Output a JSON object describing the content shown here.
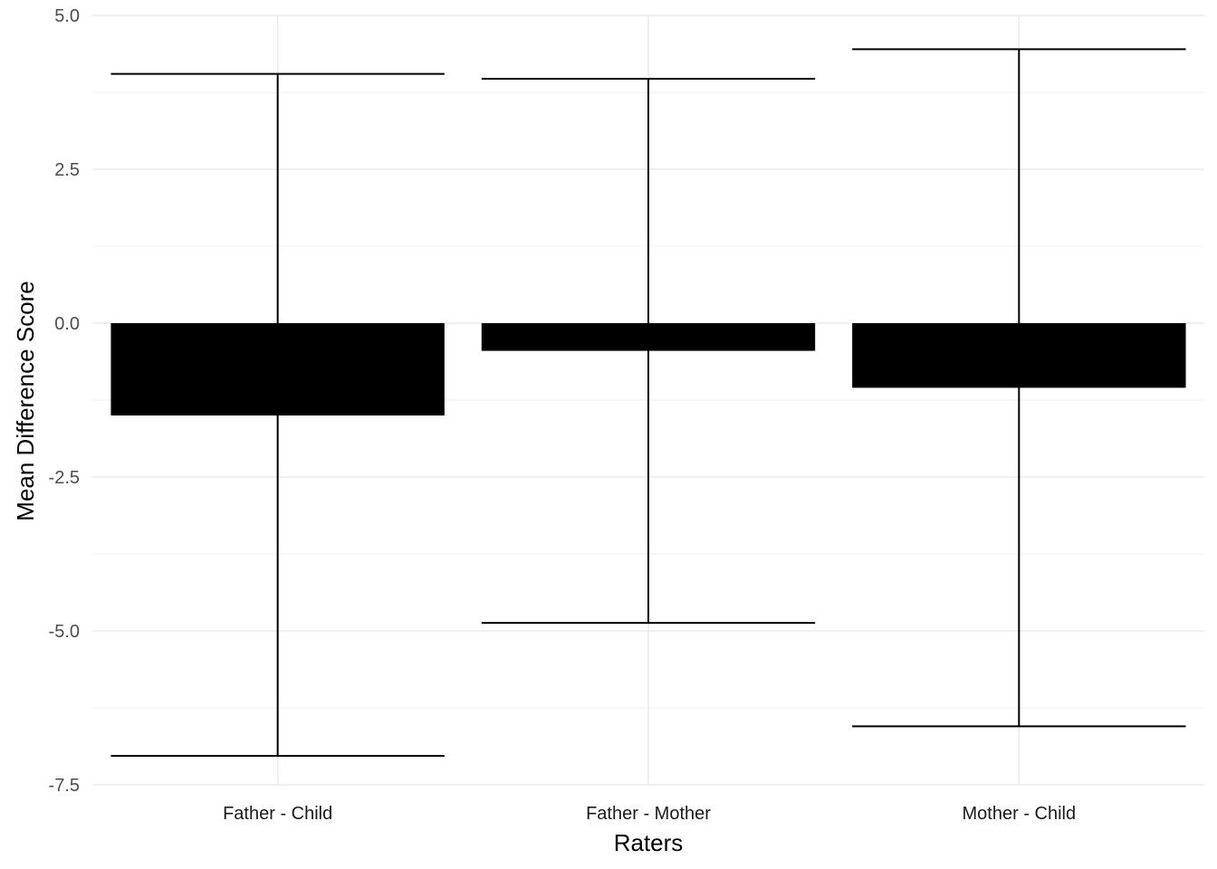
{
  "chart_data": {
    "type": "bar",
    "title": "",
    "xlabel": "Raters",
    "ylabel": "Mean Difference Score",
    "categories": [
      "Father - Child",
      "Father - Mother",
      "Mother - Child"
    ],
    "values": [
      -1.5,
      -0.45,
      -1.05
    ],
    "error_bars": {
      "lower": [
        -7.03,
        -4.87,
        -6.55
      ],
      "upper": [
        4.05,
        3.97,
        4.45
      ]
    },
    "ylim": [
      -7.5,
      5.0
    ],
    "yticks": [
      5.0,
      2.5,
      0.0,
      -2.5,
      -5.0,
      -7.5
    ],
    "ytick_labels": [
      "5.0",
      "2.5",
      "0.0",
      "-2.5",
      "-5.0",
      "-7.5"
    ],
    "grid": true,
    "legend": "none",
    "colors": {
      "bar": "#000000",
      "errorbar": "#000000",
      "grid": "#ebebeb"
    }
  }
}
